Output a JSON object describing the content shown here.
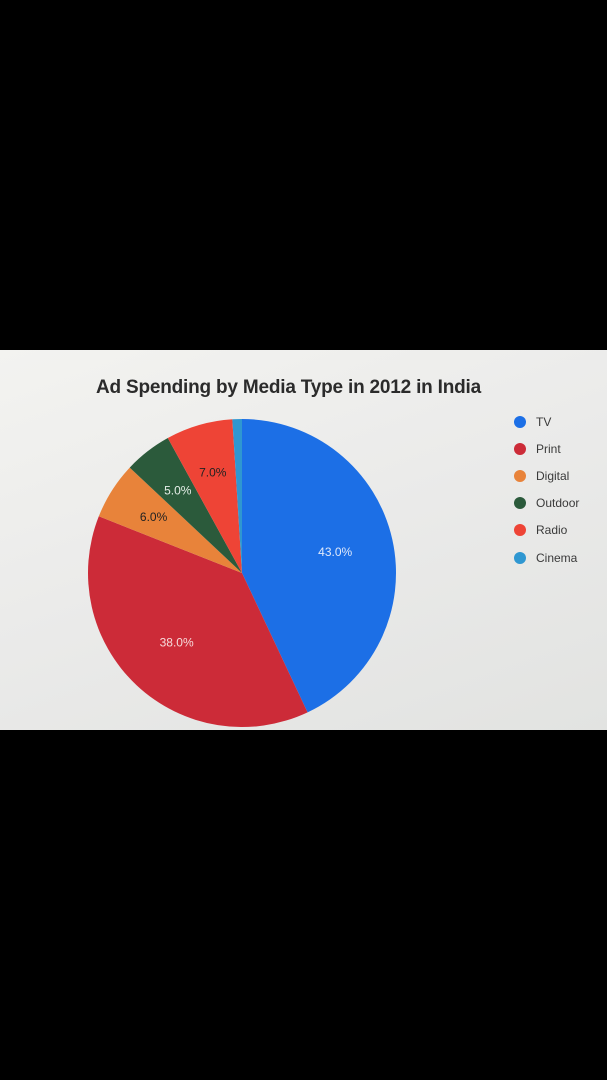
{
  "chart_data": {
    "type": "pie",
    "title": "Ad Spending by Media Type in 2012 in India",
    "slices": [
      {
        "name": "TV",
        "value": 43.0,
        "label": "43.0%",
        "color": "#1c6fe6",
        "label_color": "#dfe9fb"
      },
      {
        "name": "Print",
        "value": 38.0,
        "label": "38.0%",
        "color": "#cc2b38",
        "label_color": "#f6dcdc"
      },
      {
        "name": "Digital",
        "value": 6.0,
        "label": "6.0%",
        "color": "#e8833a",
        "label_color": "#222222"
      },
      {
        "name": "Outdoor",
        "value": 5.0,
        "label": "5.0%",
        "color": "#2b5a3b",
        "label_color": "#e6eee8"
      },
      {
        "name": "Radio",
        "value": 7.0,
        "label": "7.0%",
        "color": "#ee4436",
        "label_color": "#222222"
      },
      {
        "name": "Cinema",
        "value": 1.0,
        "label": "",
        "color": "#2f97d1",
        "label_color": "#222222"
      }
    ],
    "legend_position": "right"
  }
}
